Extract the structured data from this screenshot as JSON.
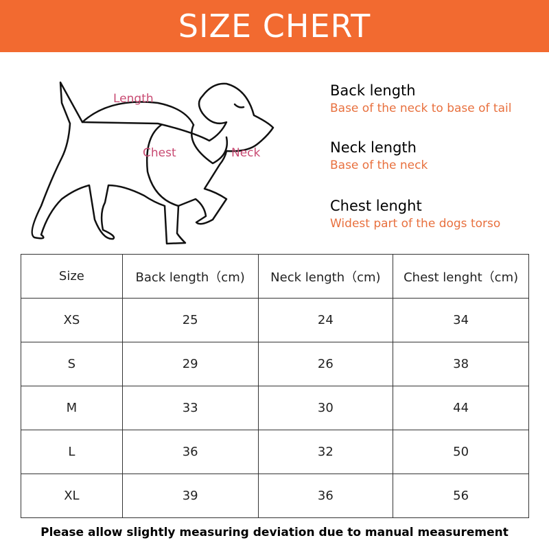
{
  "banner": {
    "title": "SIZE CHERT",
    "color": "#f26a30"
  },
  "diagram": {
    "labels": {
      "length": "Length",
      "chest": "Chest",
      "neck": "Neck"
    },
    "label_color": "#c84a72"
  },
  "measurements": [
    {
      "title": "Back length",
      "desc": "Base of the neck to base of tail"
    },
    {
      "title": "Neck length",
      "desc": "Base of the neck"
    },
    {
      "title": "Chest lenght",
      "desc": "Widest part of the dogs torso"
    }
  ],
  "table": {
    "headers": [
      "Size",
      "Back length（cm)",
      "Neck length（cm)",
      "Chest lenght（cm)"
    ],
    "rows": [
      [
        "XS",
        "25",
        "24",
        "34"
      ],
      [
        "S",
        "29",
        "26",
        "38"
      ],
      [
        "M",
        "33",
        "30",
        "44"
      ],
      [
        "L",
        "36",
        "32",
        "50"
      ],
      [
        "XL",
        "39",
        "36",
        "56"
      ]
    ]
  },
  "footer": "Please allow slightly measuring deviation due to manual measurement"
}
